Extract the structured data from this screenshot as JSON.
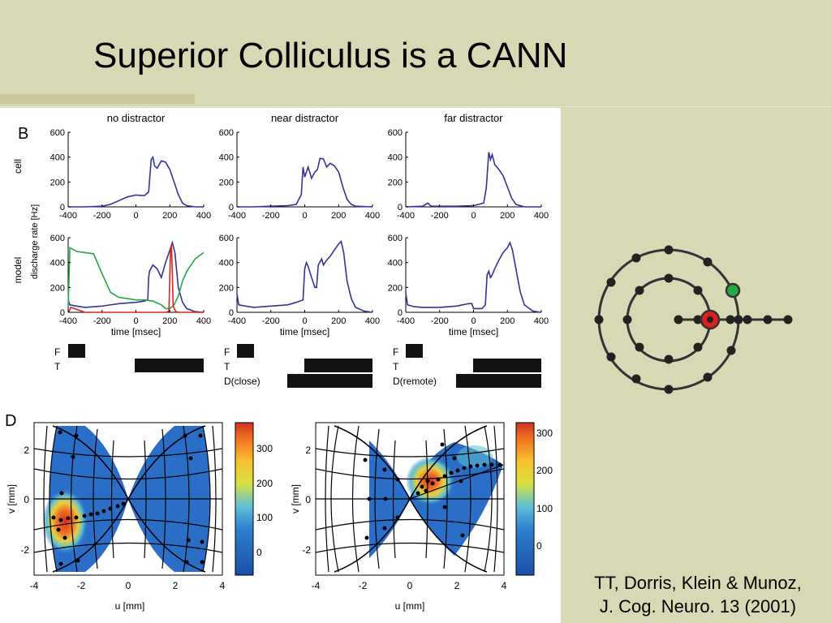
{
  "slide": {
    "title": "Superior Colliculus is a CANN",
    "credit_line1": "TT, Dorris, Klein & Munoz,",
    "credit_line2": "J. Cog. Neuro. 13 (2001)"
  },
  "colors": {
    "background": "#d8d8b4",
    "trace_blue": "#333399",
    "trace_green": "#22aa44",
    "trace_red": "#dd2222",
    "node_red": "#e02020",
    "node_green": "#22aa44"
  },
  "panel_b": {
    "label": "B",
    "column_titles": [
      "no distractor",
      "near distractor",
      "far distractor"
    ],
    "row_labels": [
      "cell",
      "model"
    ],
    "ylabel": "discharge rate [Hz]",
    "xlabel": "time [msec]",
    "x_ticks": [
      "-400",
      "-200",
      "0",
      "200",
      "400"
    ],
    "y_ticks": [
      "0",
      "200",
      "400",
      "600"
    ],
    "event_labels": [
      [
        "F",
        "T"
      ],
      [
        "F",
        "T",
        "D(close)"
      ],
      [
        "F",
        "T",
        "D(remote)"
      ]
    ]
  },
  "panel_d": {
    "label": "D",
    "xlabel": "u [mm]",
    "ylabel": "v [mm]",
    "x_ticks": [
      "-4",
      "-2",
      "0",
      "2",
      "4"
    ],
    "y_ticks": [
      "2",
      "0",
      "-2"
    ],
    "colorbar_ticks_left": [
      "300",
      "200",
      "100",
      "0"
    ],
    "colorbar_ticks_right": [
      "300",
      "200",
      "100",
      "0"
    ]
  },
  "chart_data": [
    {
      "type": "line",
      "title": "no distractor",
      "row": "cell",
      "xlabel": "",
      "ylabel": "discharge rate [Hz]",
      "xlim": [
        -400,
        400
      ],
      "ylim": [
        0,
        600
      ],
      "series": [
        {
          "color": "#333399",
          "x": [
            -400,
            -300,
            -200,
            -150,
            -100,
            -50,
            0,
            50,
            75,
            90,
            100,
            110,
            125,
            150,
            175,
            200,
            225,
            250,
            275,
            300,
            350,
            400
          ],
          "y": [
            0,
            0,
            5,
            20,
            50,
            80,
            95,
            90,
            120,
            380,
            400,
            330,
            310,
            370,
            360,
            300,
            200,
            100,
            30,
            10,
            0,
            0
          ]
        }
      ]
    },
    {
      "type": "line",
      "title": "near distractor",
      "row": "cell",
      "xlim": [
        -400,
        400
      ],
      "ylim": [
        0,
        600
      ],
      "series": [
        {
          "color": "#333399",
          "x": [
            -400,
            -300,
            -200,
            -100,
            -50,
            -20,
            -10,
            0,
            20,
            40,
            60,
            75,
            90,
            110,
            130,
            150,
            175,
            200,
            225,
            250,
            275,
            300,
            400
          ],
          "y": [
            0,
            0,
            5,
            10,
            20,
            100,
            320,
            240,
            320,
            230,
            280,
            300,
            390,
            385,
            320,
            350,
            330,
            280,
            160,
            60,
            20,
            5,
            0
          ]
        }
      ]
    },
    {
      "type": "line",
      "title": "far distractor",
      "row": "cell",
      "xlim": [
        -400,
        400
      ],
      "ylim": [
        0,
        600
      ],
      "series": [
        {
          "color": "#333399",
          "x": [
            -400,
            -300,
            -270,
            -250,
            -200,
            -100,
            0,
            60,
            75,
            90,
            100,
            110,
            125,
            150,
            175,
            200,
            225,
            250,
            300,
            400
          ],
          "y": [
            0,
            5,
            30,
            5,
            5,
            5,
            10,
            30,
            150,
            440,
            380,
            420,
            340,
            300,
            250,
            160,
            70,
            20,
            0,
            0
          ]
        }
      ]
    },
    {
      "type": "line",
      "title": "no distractor",
      "row": "model",
      "xlabel": "time [msec]",
      "ylabel": "discharge rate [Hz]",
      "xlim": [
        -400,
        400
      ],
      "ylim": [
        0,
        600
      ],
      "series": [
        {
          "color": "#333399",
          "x": [
            -400,
            -390,
            -350,
            -300,
            -200,
            -100,
            0,
            50,
            70,
            75,
            80,
            100,
            125,
            150,
            175,
            200,
            215,
            230,
            250,
            275,
            300,
            350,
            400
          ],
          "y": [
            100,
            60,
            50,
            40,
            50,
            70,
            80,
            90,
            100,
            280,
            330,
            380,
            350,
            280,
            400,
            500,
            560,
            480,
            200,
            80,
            30,
            5,
            0
          ]
        },
        {
          "color": "#22aa44",
          "x": [
            -400,
            -390,
            -350,
            -300,
            -250,
            -200,
            -150,
            -100,
            -50,
            0,
            50,
            100,
            150,
            175,
            200,
            225,
            250,
            275,
            300,
            350,
            400
          ],
          "y": [
            40,
            520,
            490,
            480,
            470,
            310,
            160,
            120,
            110,
            100,
            100,
            90,
            60,
            30,
            30,
            60,
            130,
            250,
            330,
            430,
            480
          ]
        },
        {
          "color": "#dd2222",
          "x": [
            -400,
            -395,
            -385,
            -300,
            0,
            180,
            195,
            200,
            205,
            210,
            215,
            220,
            235,
            260,
            400
          ],
          "y": [
            0,
            5,
            40,
            0,
            0,
            0,
            10,
            300,
            520,
            540,
            300,
            50,
            5,
            0,
            0
          ]
        }
      ]
    },
    {
      "type": "line",
      "title": "near distractor",
      "row": "model",
      "xlim": [
        -400,
        400
      ],
      "ylim": [
        0,
        600
      ],
      "series": [
        {
          "color": "#333399",
          "x": [
            -400,
            -390,
            -350,
            -300,
            -200,
            -100,
            -50,
            -10,
            0,
            10,
            20,
            40,
            60,
            70,
            80,
            100,
            110,
            130,
            150,
            175,
            200,
            215,
            230,
            250,
            275,
            300,
            350,
            400
          ],
          "y": [
            150,
            60,
            50,
            40,
            50,
            60,
            80,
            100,
            350,
            400,
            370,
            280,
            200,
            200,
            380,
            430,
            380,
            420,
            450,
            500,
            550,
            570,
            480,
            250,
            110,
            40,
            10,
            0
          ]
        }
      ]
    },
    {
      "type": "line",
      "title": "far distractor",
      "row": "model",
      "xlim": [
        -400,
        400
      ],
      "ylim": [
        0,
        600
      ],
      "series": [
        {
          "color": "#333399",
          "x": [
            -400,
            -390,
            -350,
            -300,
            -200,
            -100,
            -30,
            -10,
            0,
            50,
            70,
            80,
            90,
            100,
            110,
            125,
            150,
            175,
            200,
            215,
            230,
            250,
            275,
            300,
            350,
            400
          ],
          "y": [
            160,
            60,
            45,
            40,
            40,
            50,
            70,
            70,
            30,
            30,
            60,
            300,
            330,
            280,
            300,
            350,
            420,
            480,
            520,
            560,
            500,
            350,
            170,
            60,
            10,
            0
          ]
        }
      ]
    }
  ]
}
